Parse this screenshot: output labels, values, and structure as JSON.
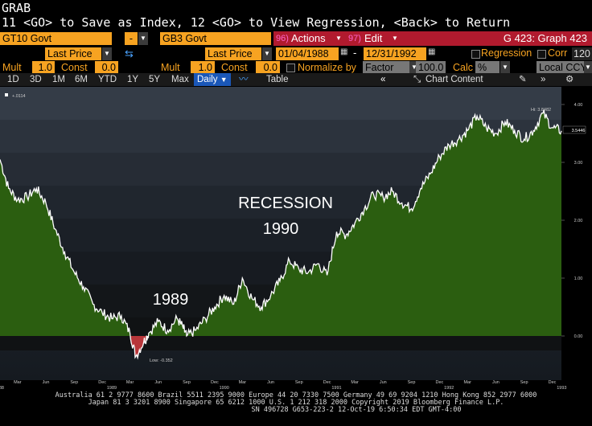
{
  "header": {
    "grab": "GRAB",
    "instruction": "11 <GO> to Save as Index, 12 <GO> to View Regression, <Back> to Return"
  },
  "toolbar1": {
    "security1": "GT10 Govt",
    "op": "-",
    "security2": "GB3 Govt",
    "actions_num": "96)",
    "actions_label": "Actions",
    "edit_num": "97)",
    "edit_label": "Edit",
    "graph_id": "G 423: Graph 423"
  },
  "toolbar2": {
    "field1": "Last Price",
    "field2": "Last Price",
    "start_date": "01/04/1988",
    "dash": "-",
    "end_date": "12/31/1992",
    "regression_label": "Regression",
    "corr_label": "Corr",
    "corr_value": "120"
  },
  "toolbar3": {
    "mult1_label": "Mult",
    "mult1_value": "1.0",
    "const1_label": "Const",
    "const1_value": "0.0",
    "mult2_label": "Mult",
    "mult2_value": "1.0",
    "const2_label": "Const",
    "const2_value": "0.0",
    "normalize_label": "Normalize by",
    "factor_label": "Factor",
    "factor_value": "100.0",
    "calc_label": "Calc",
    "calc_value": "%",
    "ccy_value": "Local CCY"
  },
  "tabs": {
    "items": [
      "1D",
      "3D",
      "1M",
      "6M",
      "YTD",
      "1Y",
      "5Y",
      "Max"
    ],
    "freq": "Daily",
    "table": "Table",
    "chart_content": "Chart Content"
  },
  "annotations": {
    "recession_line1": "RECESSION",
    "recession_line2": "1990",
    "label_1989": "1989",
    "low": "Low: -0.352",
    "hi": "Hi: 3.8482",
    "last": "3.5446",
    "legend_value": "+.0114"
  },
  "chart_data": {
    "type": "area",
    "x_range": [
      "1988-01-04",
      "1992-12-31"
    ],
    "ylim": [
      -0.4,
      4.2
    ],
    "y_ticks": [
      "0.00",
      "1.00",
      "2.00",
      "3.00",
      "4.00"
    ],
    "x_month_labels": [
      "Mar",
      "Jun",
      "Sep",
      "Dec",
      "Mar",
      "Jun",
      "Sep",
      "Dec",
      "Mar",
      "Jun",
      "Sep",
      "Dec",
      "Mar",
      "Jun",
      "Sep",
      "Dec",
      "Mar",
      "Jun",
      "Sep",
      "Dec"
    ],
    "x_year_labels": [
      "1988",
      "1989",
      "1990",
      "1991",
      "1992",
      "1993"
    ],
    "series": [
      {
        "values": [
          [
            "1988-01-04",
            3.05
          ],
          [
            "1988-02-01",
            2.55
          ],
          [
            "1988-03-01",
            2.35
          ],
          [
            "1988-04-01",
            2.4
          ],
          [
            "1988-05-01",
            2.55
          ],
          [
            "1988-06-01",
            2.3
          ],
          [
            "1988-07-01",
            1.85
          ],
          [
            "1988-08-01",
            1.45
          ],
          [
            "1988-09-01",
            1.1
          ],
          [
            "1988-10-01",
            0.85
          ],
          [
            "1988-11-01",
            0.55
          ],
          [
            "1988-12-01",
            0.4
          ],
          [
            "1989-01-01",
            0.3
          ],
          [
            "1989-02-01",
            0.35
          ],
          [
            "1989-03-01",
            0.05
          ],
          [
            "1989-03-20",
            -0.352
          ],
          [
            "1989-04-15",
            -0.1
          ],
          [
            "1989-05-01",
            0.05
          ],
          [
            "1989-06-01",
            0.25
          ],
          [
            "1989-07-01",
            0.1
          ],
          [
            "1989-08-01",
            0.3
          ],
          [
            "1989-08-20",
            0.15
          ],
          [
            "1989-09-01",
            0.0
          ],
          [
            "1989-10-01",
            0.1
          ],
          [
            "1989-11-01",
            0.3
          ],
          [
            "1989-12-01",
            0.5
          ],
          [
            "1990-01-01",
            0.7
          ],
          [
            "1990-02-01",
            0.55
          ],
          [
            "1990-03-01",
            1.0
          ],
          [
            "1990-04-01",
            0.65
          ],
          [
            "1990-05-01",
            0.5
          ],
          [
            "1990-06-01",
            0.7
          ],
          [
            "1990-07-01",
            0.95
          ],
          [
            "1990-08-01",
            1.3
          ],
          [
            "1990-09-01",
            1.15
          ],
          [
            "1990-10-01",
            1.1
          ],
          [
            "1990-11-01",
            1.25
          ],
          [
            "1990-12-01",
            1.05
          ],
          [
            "1991-01-01",
            1.8
          ],
          [
            "1991-02-01",
            1.75
          ],
          [
            "1991-03-01",
            1.95
          ],
          [
            "1991-04-01",
            2.2
          ],
          [
            "1991-05-01",
            2.45
          ],
          [
            "1991-06-01",
            2.4
          ],
          [
            "1991-07-01",
            2.5
          ],
          [
            "1991-08-01",
            2.3
          ],
          [
            "1991-09-01",
            2.2
          ],
          [
            "1991-10-01",
            2.55
          ],
          [
            "1991-11-01",
            2.8
          ],
          [
            "1991-12-01",
            3.1
          ],
          [
            "1992-01-01",
            3.3
          ],
          [
            "1992-02-01",
            3.4
          ],
          [
            "1992-03-01",
            3.55
          ],
          [
            "1992-04-01",
            3.8
          ],
          [
            "1992-05-01",
            3.6
          ],
          [
            "1992-06-01",
            3.5
          ],
          [
            "1992-07-01",
            3.7
          ],
          [
            "1992-08-01",
            3.55
          ],
          [
            "1992-09-01",
            3.4
          ],
          [
            "1992-10-01",
            3.55
          ],
          [
            "1992-11-01",
            3.85
          ],
          [
            "1992-12-01",
            3.6
          ],
          [
            "1992-12-31",
            3.5446
          ]
        ]
      }
    ]
  },
  "footer": {
    "line1": "Australia 61 2 9777 8600 Brazil 5511 2395 9000 Europe 44 20 7330 7500 Germany 49 69 9204 1210 Hong Kong 852 2977 6000",
    "line2": "Japan 81 3 3201 8900          Singapore 65 6212 1000          U.S. 1 212 318 2000                   Copyright 2019 Bloomberg Finance L.P.",
    "line3": "SN 496728 G653-223-2 12-Oct-19  6:50:34 EDT  GMT-4:00"
  },
  "colors": {
    "orange": "#f7a321",
    "red_bar": "#b11a2e",
    "active_tab": "#1a57b8",
    "area_fill": "#2b5e10",
    "line": "#ffffff",
    "low_marker": "#d23a3a"
  }
}
